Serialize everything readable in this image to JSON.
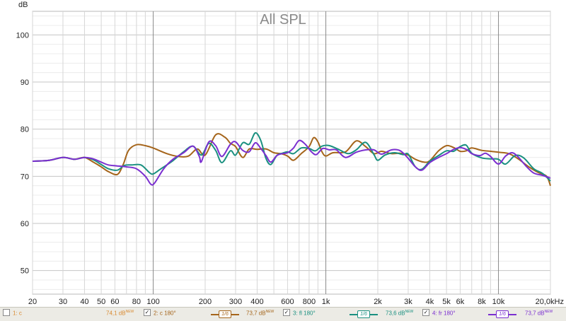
{
  "chart_data": {
    "type": "line",
    "title": "All SPL",
    "ylabel": "dB",
    "xscale": "log",
    "xlim": [
      20,
      20000
    ],
    "ylim": [
      45,
      105
    ],
    "yticks": [
      50,
      60,
      70,
      80,
      90,
      100
    ],
    "xticks": [
      {
        "v": 20,
        "label": "20"
      },
      {
        "v": 30,
        "label": "30"
      },
      {
        "v": 40,
        "label": "40"
      },
      {
        "v": 50,
        "label": "50"
      },
      {
        "v": 60,
        "label": "60"
      },
      {
        "v": 80,
        "label": "80"
      },
      {
        "v": 100,
        "label": "100"
      },
      {
        "v": 200,
        "label": "200"
      },
      {
        "v": 300,
        "label": "300"
      },
      {
        "v": 400,
        "label": "400"
      },
      {
        "v": 600,
        "label": "600"
      },
      {
        "v": 800,
        "label": "800"
      },
      {
        "v": 1000,
        "label": "1k"
      },
      {
        "v": 2000,
        "label": "2k"
      },
      {
        "v": 3000,
        "label": "3k"
      },
      {
        "v": 4000,
        "label": "4k"
      },
      {
        "v": 5000,
        "label": "5k"
      },
      {
        "v": 6000,
        "label": "6k"
      },
      {
        "v": 8000,
        "label": "8k"
      },
      {
        "v": 10000,
        "label": "10k"
      },
      {
        "v": 20000,
        "label": "20,0kHz"
      }
    ],
    "grid": true,
    "series": [
      {
        "name": "2: c 180°",
        "color": "#a5651b",
        "points": [
          [
            20,
            73.2
          ],
          [
            25,
            73.4
          ],
          [
            30,
            74
          ],
          [
            35,
            73.6
          ],
          [
            40,
            74
          ],
          [
            45,
            73
          ],
          [
            50,
            72
          ],
          [
            55,
            71
          ],
          [
            62,
            70.4
          ],
          [
            67,
            72.5
          ],
          [
            72,
            75.5
          ],
          [
            80,
            76.7
          ],
          [
            90,
            76.5
          ],
          [
            100,
            76
          ],
          [
            120,
            74.8
          ],
          [
            140,
            74.2
          ],
          [
            160,
            74.3
          ],
          [
            180,
            75.8
          ],
          [
            200,
            74.5
          ],
          [
            230,
            78.8
          ],
          [
            260,
            78.3
          ],
          [
            280,
            77
          ],
          [
            300,
            76.3
          ],
          [
            330,
            74
          ],
          [
            360,
            75.8
          ],
          [
            400,
            75.7
          ],
          [
            450,
            75.8
          ],
          [
            500,
            75
          ],
          [
            550,
            74.8
          ],
          [
            600,
            74.3
          ],
          [
            650,
            73.4
          ],
          [
            720,
            74.8
          ],
          [
            800,
            76.3
          ],
          [
            850,
            78.2
          ],
          [
            900,
            77.3
          ],
          [
            950,
            75.2
          ],
          [
            1000,
            74.3
          ],
          [
            1100,
            75
          ],
          [
            1300,
            75.2
          ],
          [
            1500,
            77.5
          ],
          [
            1700,
            76.3
          ],
          [
            1900,
            74.8
          ],
          [
            2100,
            75.3
          ],
          [
            2400,
            74.8
          ],
          [
            2700,
            74.9
          ],
          [
            3000,
            74.5
          ],
          [
            3300,
            73.6
          ],
          [
            3700,
            73
          ],
          [
            4000,
            73.3
          ],
          [
            4500,
            75.4
          ],
          [
            5000,
            76.5
          ],
          [
            5500,
            76.1
          ],
          [
            6000,
            75.3
          ],
          [
            6500,
            75.4
          ],
          [
            7000,
            76
          ],
          [
            8000,
            75.5
          ],
          [
            9000,
            75.3
          ],
          [
            10000,
            75.1
          ],
          [
            11500,
            74.8
          ],
          [
            13000,
            73.7
          ],
          [
            15000,
            72
          ],
          [
            17000,
            70.8
          ],
          [
            19000,
            70
          ],
          [
            20000,
            68
          ]
        ]
      },
      {
        "name": "3: fl 180°",
        "color": "#1a9080",
        "points": [
          [
            20,
            73.2
          ],
          [
            25,
            73.4
          ],
          [
            30,
            74
          ],
          [
            35,
            73.6
          ],
          [
            40,
            74
          ],
          [
            45,
            73.5
          ],
          [
            50,
            72.5
          ],
          [
            55,
            71.6
          ],
          [
            62,
            71.3
          ],
          [
            68,
            72.3
          ],
          [
            75,
            72.4
          ],
          [
            85,
            72.4
          ],
          [
            95,
            70.8
          ],
          [
            100,
            70.5
          ],
          [
            110,
            71.5
          ],
          [
            130,
            73.3
          ],
          [
            150,
            75.2
          ],
          [
            170,
            76.4
          ],
          [
            190,
            74.5
          ],
          [
            210,
            77
          ],
          [
            230,
            75.5
          ],
          [
            250,
            72.9
          ],
          [
            280,
            75.4
          ],
          [
            300,
            74.5
          ],
          [
            330,
            77.1
          ],
          [
            360,
            76.8
          ],
          [
            390,
            79.2
          ],
          [
            420,
            77.6
          ],
          [
            450,
            73.8
          ],
          [
            480,
            72.5
          ],
          [
            520,
            74.4
          ],
          [
            560,
            74.9
          ],
          [
            600,
            75.2
          ],
          [
            650,
            74.8
          ],
          [
            720,
            76
          ],
          [
            800,
            75.9
          ],
          [
            870,
            75.4
          ],
          [
            950,
            76.4
          ],
          [
            1050,
            76.5
          ],
          [
            1200,
            75.6
          ],
          [
            1350,
            74.8
          ],
          [
            1500,
            75.6
          ],
          [
            1700,
            77.2
          ],
          [
            1900,
            74.6
          ],
          [
            2000,
            73.4
          ],
          [
            2200,
            74.5
          ],
          [
            2500,
            75
          ],
          [
            2800,
            74.6
          ],
          [
            3000,
            74.7
          ],
          [
            3300,
            72
          ],
          [
            3600,
            71.5
          ],
          [
            4000,
            73.2
          ],
          [
            4500,
            74.4
          ],
          [
            5000,
            75.4
          ],
          [
            5500,
            75.3
          ],
          [
            6000,
            76.3
          ],
          [
            6500,
            76.6
          ],
          [
            7000,
            74.9
          ],
          [
            8000,
            73.9
          ],
          [
            9000,
            73.7
          ],
          [
            10000,
            73.6
          ],
          [
            11000,
            72.6
          ],
          [
            12500,
            74.4
          ],
          [
            14000,
            73.9
          ],
          [
            16000,
            71.6
          ],
          [
            18000,
            70.6
          ],
          [
            20000,
            69
          ]
        ]
      },
      {
        "name": "4: fr 180°",
        "color": "#7b2fd0",
        "points": [
          [
            20,
            73.2
          ],
          [
            25,
            73.4
          ],
          [
            30,
            74
          ],
          [
            35,
            73.6
          ],
          [
            40,
            74
          ],
          [
            45,
            73.7
          ],
          [
            50,
            73
          ],
          [
            55,
            72.4
          ],
          [
            62,
            72.2
          ],
          [
            70,
            72
          ],
          [
            80,
            71.6
          ],
          [
            90,
            70
          ],
          [
            97,
            68.3
          ],
          [
            102,
            68.6
          ],
          [
            115,
            71.6
          ],
          [
            130,
            73.6
          ],
          [
            150,
            75
          ],
          [
            170,
            76.4
          ],
          [
            185,
            74.2
          ],
          [
            190,
            73.1
          ],
          [
            210,
            77.3
          ],
          [
            230,
            76.5
          ],
          [
            250,
            74.2
          ],
          [
            280,
            76.8
          ],
          [
            300,
            77.3
          ],
          [
            330,
            75.5
          ],
          [
            360,
            75.2
          ],
          [
            390,
            77.1
          ],
          [
            420,
            75.9
          ],
          [
            450,
            74.4
          ],
          [
            480,
            73
          ],
          [
            520,
            74.4
          ],
          [
            560,
            74.8
          ],
          [
            600,
            75
          ],
          [
            650,
            76
          ],
          [
            700,
            77.6
          ],
          [
            760,
            76.8
          ],
          [
            820,
            75.3
          ],
          [
            880,
            74.6
          ],
          [
            960,
            75.9
          ],
          [
            1050,
            75.6
          ],
          [
            1150,
            75.6
          ],
          [
            1300,
            74
          ],
          [
            1500,
            75.1
          ],
          [
            1700,
            75.6
          ],
          [
            1900,
            75.6
          ],
          [
            2100,
            74.7
          ],
          [
            2400,
            75.6
          ],
          [
            2700,
            75.4
          ],
          [
            3000,
            73.8
          ],
          [
            3300,
            72
          ],
          [
            3600,
            71.3
          ],
          [
            4000,
            72.9
          ],
          [
            4500,
            74
          ],
          [
            5000,
            74.8
          ],
          [
            5500,
            75.7
          ],
          [
            6000,
            76.1
          ],
          [
            6600,
            75.6
          ],
          [
            7000,
            74.8
          ],
          [
            7800,
            74.4
          ],
          [
            8400,
            74.9
          ],
          [
            9000,
            74.2
          ],
          [
            10000,
            72.6
          ],
          [
            11000,
            74.3
          ],
          [
            12000,
            75
          ],
          [
            13000,
            74.1
          ],
          [
            14500,
            72.1
          ],
          [
            16000,
            70.7
          ],
          [
            18000,
            70.2
          ],
          [
            20000,
            69.6
          ]
        ]
      }
    ]
  },
  "legend": {
    "items": [
      {
        "name": "1: c",
        "value": "74,1 dB",
        "sup": "NEW",
        "color": "#d9892f",
        "checked": ""
      },
      {
        "name": "2: c 180°",
        "value": "73,7 dB",
        "sup": "NEW",
        "color": "#a5651b",
        "checked": "✓",
        "smooth": "1/6"
      },
      {
        "name": "3: fl 180°",
        "value": "73,6 dB",
        "sup": "NEW",
        "color": "#1a9080",
        "checked": "✓",
        "smooth": "1/6"
      },
      {
        "name": "4: fr 180°",
        "value": "73,7 dB",
        "sup": "NEW",
        "color": "#7b2fd0",
        "checked": "✓",
        "smooth": "1/6"
      }
    ]
  }
}
